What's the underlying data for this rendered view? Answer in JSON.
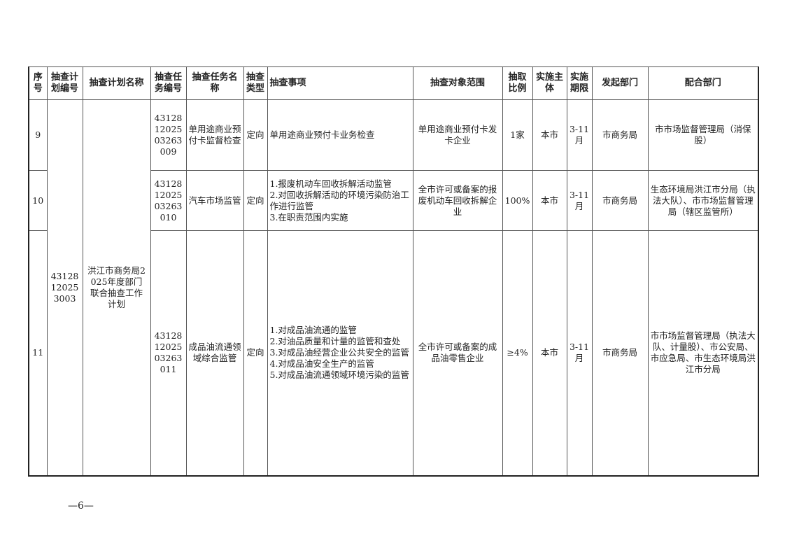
{
  "headers": [
    "序号",
    "抽查计划编号",
    "抽查计划名称",
    "抽查任务编号",
    "抽查任务名称",
    "抽查类型",
    "抽查事项",
    "抽查对象范围",
    "抽取比例",
    "实施主体",
    "实施期限",
    "发起部门",
    "配合部门"
  ],
  "plan": {
    "number": "43128120253003",
    "name": "洪江市商务局2025年度部门联合抽查工作计划"
  },
  "rows": [
    {
      "seq": "9",
      "task_no": "431281202503263009",
      "task_name": "单用途商业预付卡监督检查",
      "type": "定向",
      "items": [
        "单用途商业预付卡业务检查"
      ],
      "scope": "单用途商业预付卡发卡企业",
      "ratio": "1家",
      "subject": "本市",
      "period": "3-11月",
      "initiator": "市商务局",
      "partners": "市市场监督管理局（消保股）"
    },
    {
      "seq": "10",
      "task_no": "431281202503263010",
      "task_name": "汽车市场监管",
      "type": "定向",
      "items": [
        "1.报废机动车回收拆解活动监管",
        "2.对回收拆解活动的环境污染防治工作进行监管",
        "3.在职责范围内实施"
      ],
      "scope": "全市许可或备案的报废机动车回收拆解企业",
      "ratio": "100%",
      "subject": "本市",
      "period": "3-11月",
      "initiator": "市商务局",
      "partners": "生态环境局洪江市分局（执法大队）、市市场监督管理局（辖区监管所）"
    },
    {
      "seq": "11",
      "task_no": "431281202503263011",
      "task_name": "成品油流通领域综合监管",
      "type": "定向",
      "items": [
        "1.对成品油流通的监管",
        "2.对油品质量和计量的监管和查处",
        "3.对成品油经营企业公共安全的监管",
        "4.对成品油安全生产的监管",
        "5.对成品油流通领域环境污染的监管"
      ],
      "scope": "全市许可或备案的成品油零售企业",
      "ratio": "≥4%",
      "subject": "本市",
      "period": "3-11月",
      "initiator": "市商务局",
      "partners": "市市场监督管理局（执法大队、计量股）、市公安局、市应急局、市生态环境局洪江市分局"
    }
  ],
  "footer": {
    "page": "—6—"
  }
}
